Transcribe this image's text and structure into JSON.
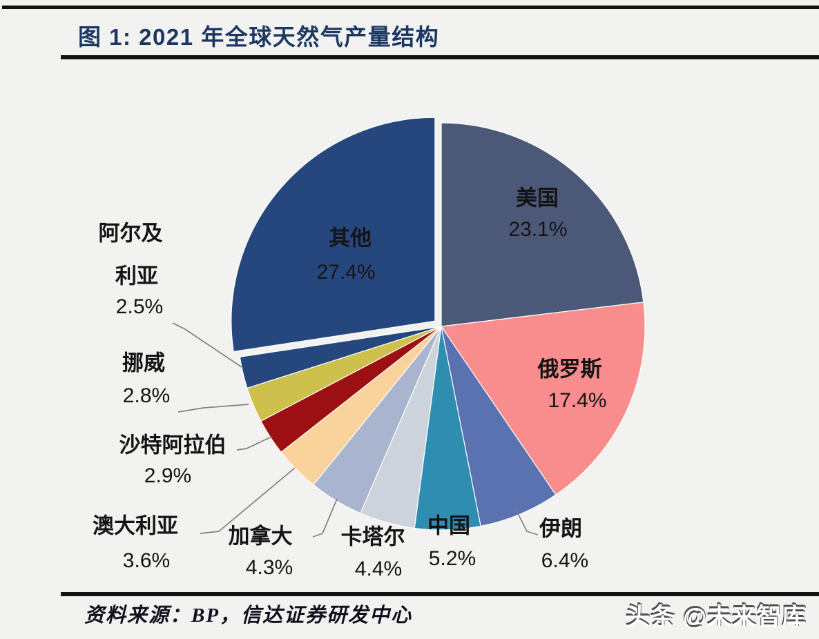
{
  "page": {
    "figure_title": "图 1: 2021 年全球天然气产量结构",
    "source_note": "资料来源：BP，信达证券研发中心",
    "watermark": "头条 @未来智库"
  },
  "colors": {
    "title_text": "#1d3763",
    "rule": "#121212",
    "leader_line": "#808080",
    "label_text": "#141414",
    "background": "#f2f3f1",
    "slice_separator": "#ffffff"
  },
  "chart_data": {
    "type": "pie",
    "title": "2021 年全球天然气产量结构",
    "unit": "%",
    "start_angle_deg": 0,
    "direction": "clockwise",
    "legend_position": "none",
    "slices": [
      {
        "id": "usa",
        "label": "美国",
        "value": 23.1,
        "color": "#4c5877",
        "label_position": "inside",
        "exploded": false
      },
      {
        "id": "russia",
        "label": "俄罗斯",
        "value": 17.4,
        "color": "#f98c8c",
        "label_position": "inside",
        "exploded": false
      },
      {
        "id": "iran",
        "label": "伊朗",
        "value": 6.4,
        "color": "#5a72af",
        "label_position": "outside",
        "exploded": false
      },
      {
        "id": "china",
        "label": "中国",
        "value": 5.2,
        "color": "#2f8db2",
        "label_position": "outside",
        "exploded": false
      },
      {
        "id": "qatar",
        "label": "卡塔尔",
        "value": 4.4,
        "color": "#cdd3dc",
        "label_position": "outside",
        "exploded": false
      },
      {
        "id": "canada",
        "label": "加拿大",
        "value": 4.3,
        "color": "#a9b5cf",
        "label_position": "outside",
        "exploded": false
      },
      {
        "id": "australia",
        "label": "澳大利亚",
        "value": 3.6,
        "color": "#fad29c",
        "label_position": "outside",
        "exploded": false
      },
      {
        "id": "saudi-arabia",
        "label": "沙特阿拉伯",
        "value": 2.9,
        "color": "#9c0f12",
        "label_position": "outside",
        "exploded": false
      },
      {
        "id": "norway",
        "label": "挪威",
        "value": 2.8,
        "color": "#cec04d",
        "label_position": "outside",
        "exploded": false
      },
      {
        "id": "algeria",
        "label": "阿尔及利亚",
        "value": 2.5,
        "color": "#26477e",
        "label_position": "outside",
        "exploded": false
      },
      {
        "id": "others",
        "label": "其他",
        "value": 27.4,
        "color": "#26477e",
        "label_position": "inside",
        "exploded": true
      }
    ]
  }
}
